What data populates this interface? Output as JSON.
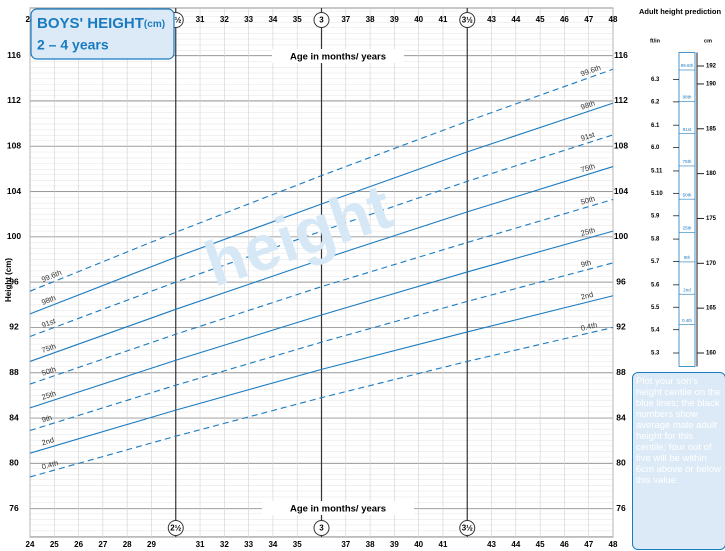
{
  "chart_data": {
    "type": "line",
    "title": "BOYS' HEIGHT",
    "title_unit": "(cm)",
    "subtitle": "2 – 4 years",
    "watermark": "height",
    "x_label": "Age in months/ years",
    "y_label": "Height (cm)",
    "x": [
      24,
      30,
      36,
      42,
      48
    ],
    "xlim": [
      24,
      48
    ],
    "xticks": [
      24,
      25,
      26,
      27,
      28,
      29,
      31,
      32,
      33,
      34,
      35,
      37,
      38,
      39,
      40,
      41,
      43,
      44,
      45,
      46,
      47,
      48
    ],
    "year_ticks": [
      {
        "value": 30,
        "label": "2½"
      },
      {
        "value": 36,
        "label": "3"
      },
      {
        "value": 42,
        "label": "3½"
      }
    ],
    "ylim": [
      73.5,
      120.2
    ],
    "yticks": [
      76,
      80,
      84,
      88,
      92,
      96,
      100,
      104,
      108,
      112,
      116
    ],
    "grid": true,
    "series": [
      {
        "name": "99.6th",
        "color": "#1b7bc0",
        "dashed": true,
        "values": [
          95.2,
          100.4,
          105.4,
          110.2,
          114.8
        ]
      },
      {
        "name": "98th",
        "color": "#1b7bc0",
        "dashed": false,
        "values": [
          93.2,
          98.2,
          102.9,
          107.5,
          111.8
        ]
      },
      {
        "name": "91st",
        "color": "#1b7bc0",
        "dashed": true,
        "values": [
          91.2,
          96.0,
          100.5,
          104.9,
          109.0
        ]
      },
      {
        "name": "75th",
        "color": "#1b7bc0",
        "dashed": false,
        "values": [
          89.0,
          93.6,
          98.0,
          102.2,
          106.2
        ]
      },
      {
        "name": "50th",
        "color": "#1b7bc0",
        "dashed": true,
        "values": [
          87.0,
          91.4,
          95.6,
          99.5,
          103.3
        ]
      },
      {
        "name": "25th",
        "color": "#1b7bc0",
        "dashed": false,
        "values": [
          84.9,
          89.1,
          93.1,
          96.9,
          100.5
        ]
      },
      {
        "name": "9th",
        "color": "#1b7bc0",
        "dashed": true,
        "values": [
          82.9,
          86.9,
          90.7,
          94.3,
          97.7
        ]
      },
      {
        "name": "2nd",
        "color": "#1b7bc0",
        "dashed": false,
        "values": [
          80.9,
          84.7,
          88.3,
          91.6,
          94.8
        ]
      },
      {
        "name": "0.4th",
        "color": "#1b7bc0",
        "dashed": true,
        "values": [
          78.8,
          82.4,
          85.8,
          89.0,
          92.0
        ]
      }
    ]
  },
  "adult_prediction": {
    "title": "Adult height prediction",
    "ft_label": "ft/in",
    "cm_label": "cm",
    "cm_lim": [
      158.5,
      193.5
    ],
    "cm_ticks": [
      192,
      190,
      185,
      180,
      175,
      170,
      165,
      160
    ],
    "ft_ticks": [
      {
        "value": 190.5,
        "label": "6.3"
      },
      {
        "value": 188.0,
        "label": "6.2"
      },
      {
        "value": 185.4,
        "label": "6.1"
      },
      {
        "value": 182.9,
        "label": "6.0"
      },
      {
        "value": 180.3,
        "label": "5.11"
      },
      {
        "value": 177.8,
        "label": "5.10"
      },
      {
        "value": 175.3,
        "label": "5.9"
      },
      {
        "value": 172.7,
        "label": "5.8"
      },
      {
        "value": 170.2,
        "label": "5.7"
      },
      {
        "value": 167.6,
        "label": "5.6"
      },
      {
        "value": 165.1,
        "label": "5.5"
      },
      {
        "value": 162.6,
        "label": "5.4"
      },
      {
        "value": 160.0,
        "label": "5.3"
      }
    ],
    "centile_values": [
      192.0,
      188.5,
      184.9,
      181.3,
      177.6,
      173.9,
      170.6,
      167.0,
      163.6
    ],
    "note": "Plot your son's height centile on the blue lines; the black numbers show average male adult height for this centile; four out of five will be within 6cm  above or below this value."
  }
}
